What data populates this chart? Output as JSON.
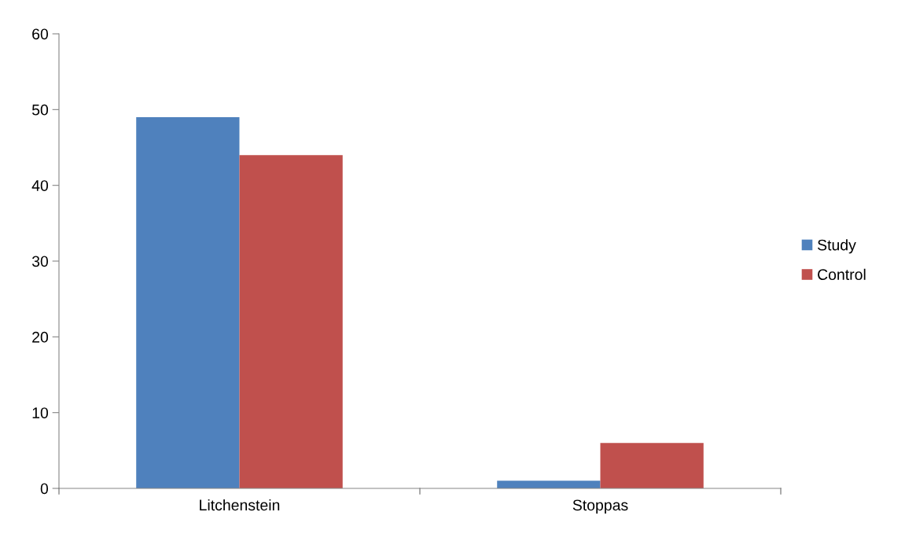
{
  "chart_data": {
    "type": "bar",
    "categories": [
      "Litchenstein",
      "Stoppas"
    ],
    "series": [
      {
        "name": "Study",
        "color": "#4f81bd",
        "values": [
          49,
          1
        ]
      },
      {
        "name": "Control",
        "color": "#c0504d",
        "values": [
          44,
          6
        ]
      }
    ],
    "ylim": [
      0,
      60
    ],
    "yticks": [
      0,
      10,
      20,
      30,
      40,
      50,
      60
    ],
    "grid": false,
    "legend": "right"
  }
}
